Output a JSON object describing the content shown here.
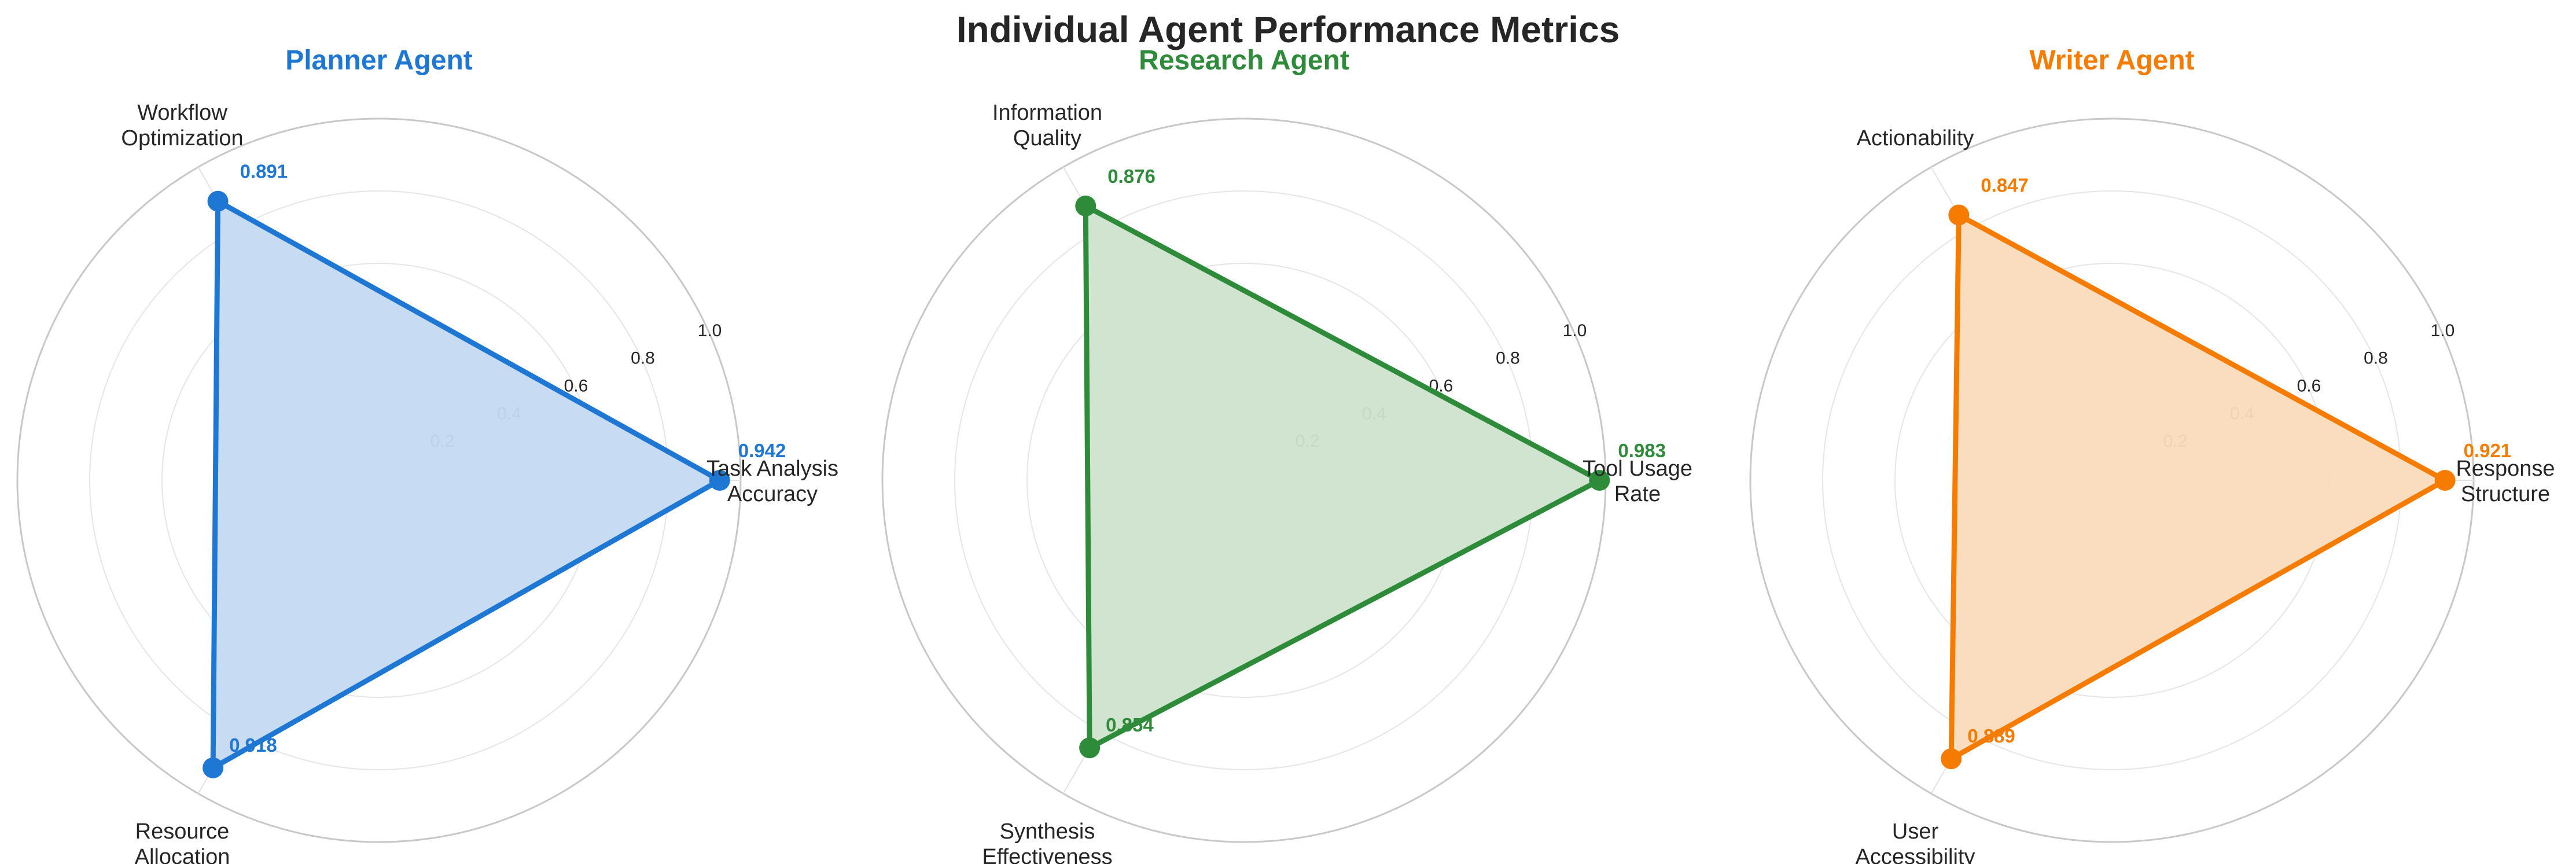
{
  "figure_title": "Individual Agent Performance Metrics",
  "chart_data": [
    {
      "type": "radar",
      "title": "Planner Agent",
      "color": "#1f77d4",
      "fill": "#c4daf1",
      "rlim": [
        0,
        1.0
      ],
      "ticks": [
        "0.2",
        "0.4",
        "0.6",
        "0.8",
        "1.0"
      ],
      "tick_values": [
        0.2,
        0.4,
        0.6,
        0.8,
        1.0
      ],
      "axes": [
        {
          "label": [
            "Task Analysis",
            "Accuracy"
          ],
          "value": 0.942,
          "value_label": "0.942"
        },
        {
          "label": [
            "Workflow",
            "Optimization"
          ],
          "value": 0.891,
          "value_label": "0.891"
        },
        {
          "label": [
            "Resource",
            "Allocation"
          ],
          "value": 0.918,
          "value_label": "0.918"
        }
      ]
    },
    {
      "type": "radar",
      "title": "Research Agent",
      "color": "#2e8b3a",
      "fill": "#cde3cd",
      "rlim": [
        0,
        1.0
      ],
      "ticks": [
        "0.2",
        "0.4",
        "0.6",
        "0.8",
        "1.0"
      ],
      "tick_values": [
        0.2,
        0.4,
        0.6,
        0.8,
        1.0
      ],
      "axes": [
        {
          "label": [
            "Tool Usage",
            "Rate"
          ],
          "value": 0.983,
          "value_label": "0.983"
        },
        {
          "label": [
            "Information",
            "Quality"
          ],
          "value": 0.876,
          "value_label": "0.876"
        },
        {
          "label": [
            "Synthesis",
            "Effectiveness"
          ],
          "value": 0.854,
          "value_label": "0.854"
        }
      ]
    },
    {
      "type": "radar",
      "title": "Writer Agent",
      "color": "#f57c00",
      "fill": "#f9dbbb",
      "rlim": [
        0,
        1.0
      ],
      "ticks": [
        "0.2",
        "0.4",
        "0.6",
        "0.8",
        "1.0"
      ],
      "tick_values": [
        0.2,
        0.4,
        0.6,
        0.8,
        1.0
      ],
      "axes": [
        {
          "label": [
            "Response",
            "Structure"
          ],
          "value": 0.921,
          "value_label": "0.921"
        },
        {
          "label": [
            "Actionability"
          ],
          "value": 0.847,
          "value_label": "0.847"
        },
        {
          "label": [
            "User",
            "Accessibility"
          ],
          "value": 0.889,
          "value_label": "0.889"
        }
      ]
    }
  ]
}
